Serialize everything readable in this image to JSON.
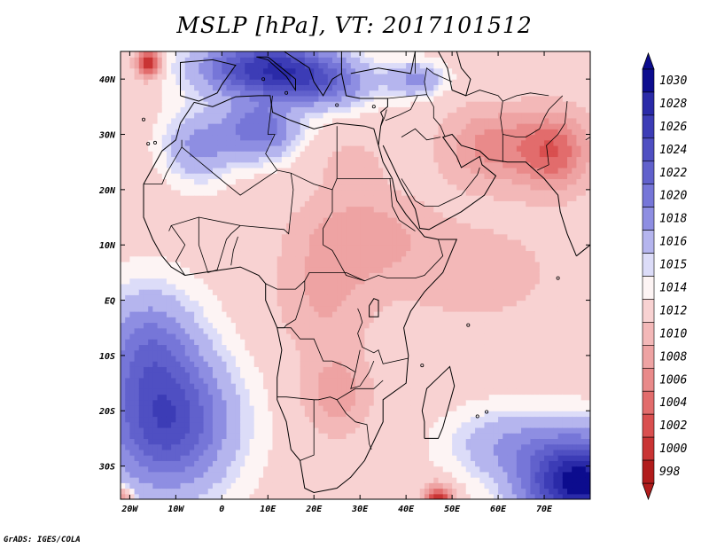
{
  "title": "MSLP [hPa], VT: 2017101512",
  "credit": "GrADS: IGES/COLA",
  "x_ticks": [
    {
      "value": -20,
      "label": "20W"
    },
    {
      "value": -10,
      "label": "10W"
    },
    {
      "value": 0,
      "label": "0"
    },
    {
      "value": 10,
      "label": "10E"
    },
    {
      "value": 20,
      "label": "20E"
    },
    {
      "value": 30,
      "label": "30E"
    },
    {
      "value": 40,
      "label": "40E"
    },
    {
      "value": 50,
      "label": "50E"
    },
    {
      "value": 60,
      "label": "60E"
    },
    {
      "value": 70,
      "label": "70E"
    }
  ],
  "y_ticks": [
    {
      "value": 40,
      "label": "40N"
    },
    {
      "value": 30,
      "label": "30N"
    },
    {
      "value": 20,
      "label": "20N"
    },
    {
      "value": 10,
      "label": "10N"
    },
    {
      "value": 0,
      "label": "EQ"
    },
    {
      "value": -10,
      "label": "10S"
    },
    {
      "value": -20,
      "label": "20S"
    },
    {
      "value": -30,
      "label": "30S"
    }
  ],
  "lon_range": [
    -22,
    80
  ],
  "lat_range": [
    -36,
    45
  ],
  "colorbar": {
    "levels": [
      "1030",
      "1028",
      "1026",
      "1024",
      "1022",
      "1020",
      "1018",
      "1016",
      "1015",
      "1014",
      "1012",
      "1010",
      "1008",
      "1006",
      "1004",
      "1002",
      "1000",
      "998"
    ],
    "colors": [
      "#0c0c8e",
      "#2a2aa8",
      "#3c3cb6",
      "#4f4fc2",
      "#6161cc",
      "#7676d8",
      "#8e8ee2",
      "#b5b5ee",
      "#dcdcf8",
      "#fdf4f4",
      "#f8d2d2",
      "#f3b8b8",
      "#eea3a3",
      "#e98a8a",
      "#e26c6c",
      "#d94f4f",
      "#c93434",
      "#b11c1c"
    ]
  },
  "field": {
    "base": 1013.5,
    "features": [
      {
        "lon": 10,
        "lat": 42,
        "sx": 14,
        "sy": 5,
        "amp": 14
      },
      {
        "lon": 22,
        "lat": 39,
        "sx": 10,
        "sy": 4,
        "amp": 6
      },
      {
        "lon": 8,
        "lat": 31,
        "sx": 8,
        "sy": 5,
        "amp": 8
      },
      {
        "lon": -5,
        "lat": 28,
        "sx": 7,
        "sy": 6,
        "amp": 5
      },
      {
        "lon": 42,
        "lat": 40,
        "sx": 6,
        "sy": 3,
        "amp": 5
      },
      {
        "lon": 58,
        "lat": 28,
        "sx": 10,
        "sy": 7,
        "amp": -6
      },
      {
        "lon": 72,
        "lat": 27,
        "sx": 8,
        "sy": 7,
        "amp": -9
      },
      {
        "lon": 30,
        "lat": 12,
        "sx": 14,
        "sy": 8,
        "amp": -4.5
      },
      {
        "lon": 22,
        "lat": 0,
        "sx": 10,
        "sy": 10,
        "amp": -3.5
      },
      {
        "lon": 25,
        "lat": -17,
        "sx": 7,
        "sy": 7,
        "amp": -5
      },
      {
        "lon": 55,
        "lat": 5,
        "sx": 20,
        "sy": 10,
        "amp": -2.5
      },
      {
        "lon": 28,
        "lat": 25,
        "sx": 8,
        "sy": 5,
        "amp": -2
      },
      {
        "lon": -12,
        "lat": -22,
        "sx": 13,
        "sy": 12,
        "amp": 12
      },
      {
        "lon": -16,
        "lat": -8,
        "sx": 10,
        "sy": 10,
        "amp": 6
      },
      {
        "lon": 78,
        "lat": -33,
        "sx": 12,
        "sy": 8,
        "amp": 18
      },
      {
        "lon": 62,
        "lat": -26,
        "sx": 12,
        "sy": 6,
        "amp": 4
      },
      {
        "lon": -16,
        "lat": 43,
        "sx": 2.5,
        "sy": 2.5,
        "amp": -14
      },
      {
        "lon": 47,
        "lat": -36,
        "sx": 3,
        "sy": 2.5,
        "amp": -13
      },
      {
        "lon": -22,
        "lat": -37,
        "sx": 2.5,
        "sy": 2.5,
        "amp": -11
      }
    ]
  }
}
